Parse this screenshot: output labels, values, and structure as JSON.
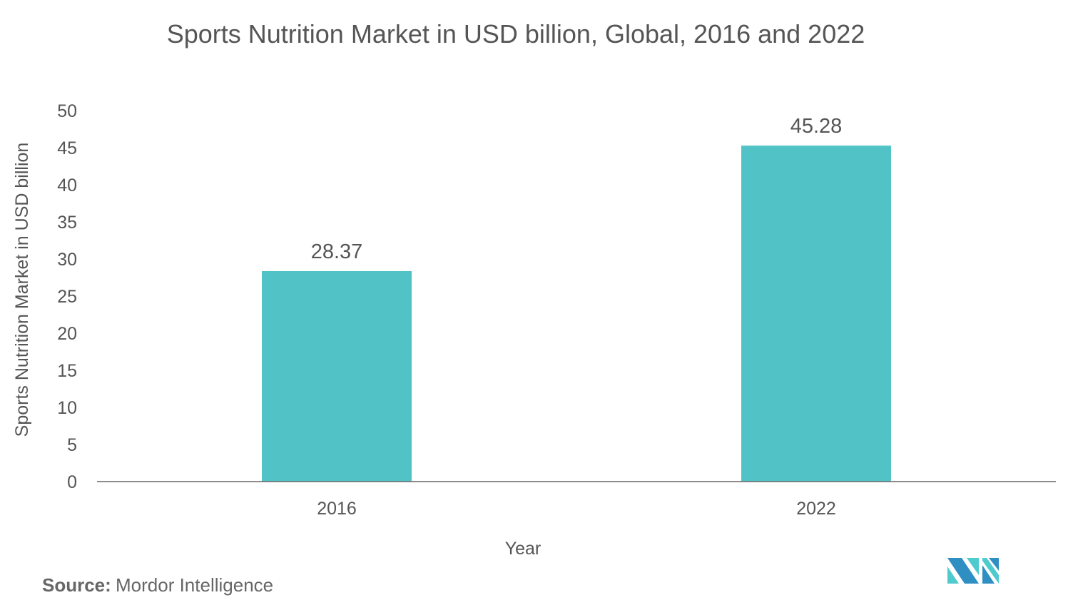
{
  "chart_data": {
    "type": "bar",
    "title": "Sports Nutrition Market in USD billion, Global, 2016 and 2022",
    "xlabel": "Year",
    "ylabel": "Sports Nutrition Market  in USD billion",
    "categories": [
      "2016",
      "2022"
    ],
    "values": [
      28.37,
      45.28
    ],
    "data_labels": [
      "28.37",
      "45.28"
    ],
    "ylim": [
      0,
      50
    ],
    "yticks": [
      0,
      5,
      10,
      15,
      20,
      25,
      30,
      35,
      40,
      45,
      50
    ],
    "grid": false,
    "bar_color": "#51c3c6"
  },
  "source": {
    "label": "Source:",
    "text": "Mordor Intelligence"
  },
  "logo": {
    "name": "mordor-intelligence-logo",
    "colors": [
      "#2f8fc2",
      "#4fcbcf"
    ]
  }
}
